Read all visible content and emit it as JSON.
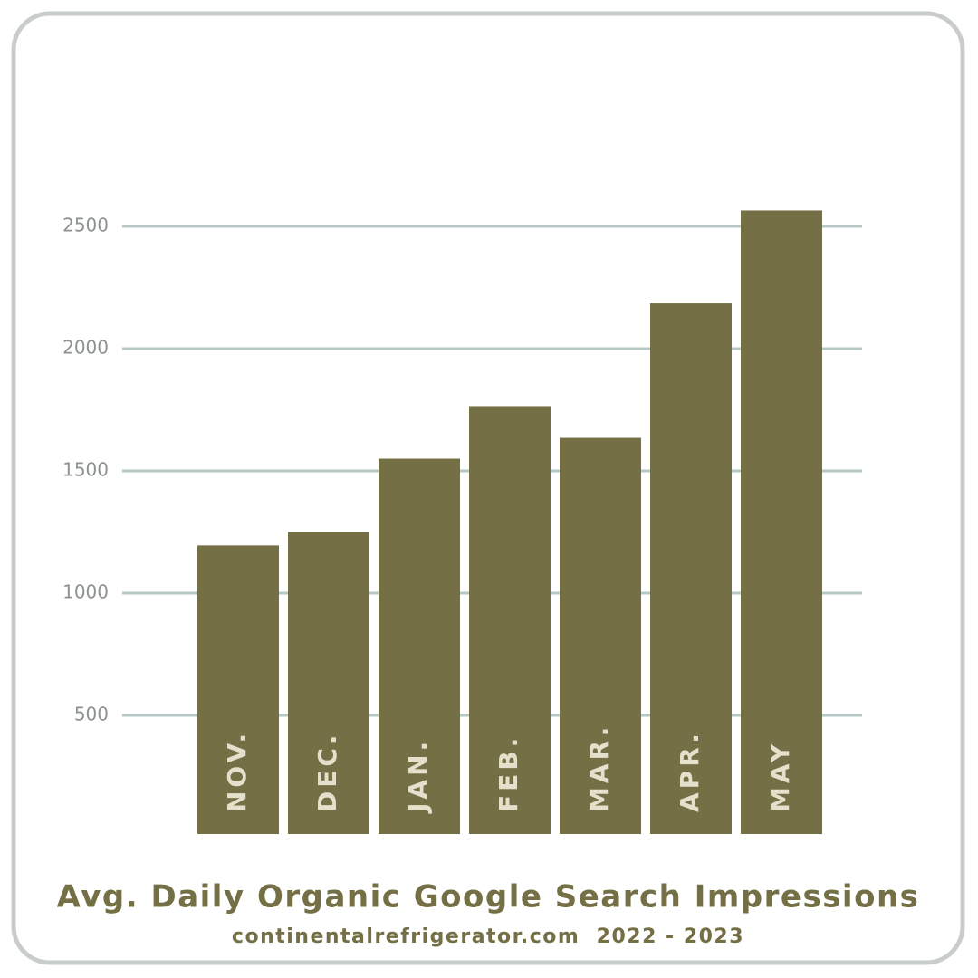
{
  "chart_data": {
    "type": "bar",
    "title": "Avg. Daily Organic Google Search Impressions",
    "subtitle": "continentalrefrigerator.com  2022 - 2023",
    "categories": [
      "NOV.",
      "DEC.",
      "JAN.",
      "FEB.",
      "MAR.",
      "APR.",
      "MAY"
    ],
    "values": [
      1195,
      1250,
      1550,
      1765,
      1635,
      2185,
      2565
    ],
    "color": "#746f45",
    "ylim": [
      0,
      2700
    ],
    "yticks": [
      500,
      1000,
      1500,
      2000,
      2500
    ],
    "grid": true
  }
}
